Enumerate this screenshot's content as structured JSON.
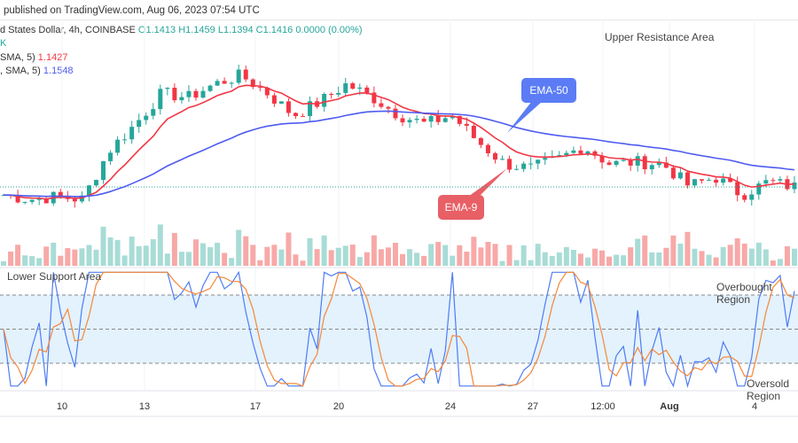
{
  "header": {
    "published": "published on TradingView.com, Aug 06, 2023 07:54 UTC"
  },
  "legend": {
    "symbol": "d States Dollar, 4h, COINBASE",
    "o": "O1.1413",
    "h": "H1.1459",
    "l": "L1.1394",
    "c": "C1.1416",
    "chg": "0.0000 (0.00%)",
    "vol": "K",
    "ema9_label": "SMA, 5)",
    "ema9_value": "1.1427",
    "ema50_label": ", SMA, 5)",
    "ema50_value": "1.1548"
  },
  "annotations": {
    "upper": "Upper Resistance Area",
    "lower": "Lower Support Area",
    "ema50": "EMA-50",
    "ema9": "EMA-9",
    "overbought": "Overbought Region",
    "oversold": "Oversold Region"
  },
  "colors": {
    "up": "#26a69a",
    "down": "#f23645",
    "ema9": "#f23645",
    "ema50": "#4f5bf0",
    "k": "#4f7cf5",
    "d": "#f5873a",
    "band": "#e3f2fd"
  },
  "chart_data": {
    "type": "candlestick",
    "x_ticks": [
      "10",
      "13",
      "17",
      "20",
      "24",
      "27",
      "12:00",
      "Aug",
      "4"
    ],
    "anchor_closes": [
      1.138,
      1.136,
      1.1372,
      1.136,
      1.158,
      1.17,
      1.184,
      1.182,
      1.188,
      1.192,
      1.184,
      1.174,
      1.18,
      1.188,
      1.182,
      1.174,
      1.17,
      1.174,
      1.162,
      1.152,
      1.15,
      1.154,
      1.16,
      1.152,
      1.1528,
      1.152,
      1.142,
      1.146,
      1.138,
      1.144,
      1.1416
    ],
    "last_price": 1.1416,
    "indicators": [
      "EMA-9",
      "EMA-50",
      "Volume",
      "Stochastic"
    ],
    "stoch_levels": [
      80,
      50,
      20
    ]
  }
}
